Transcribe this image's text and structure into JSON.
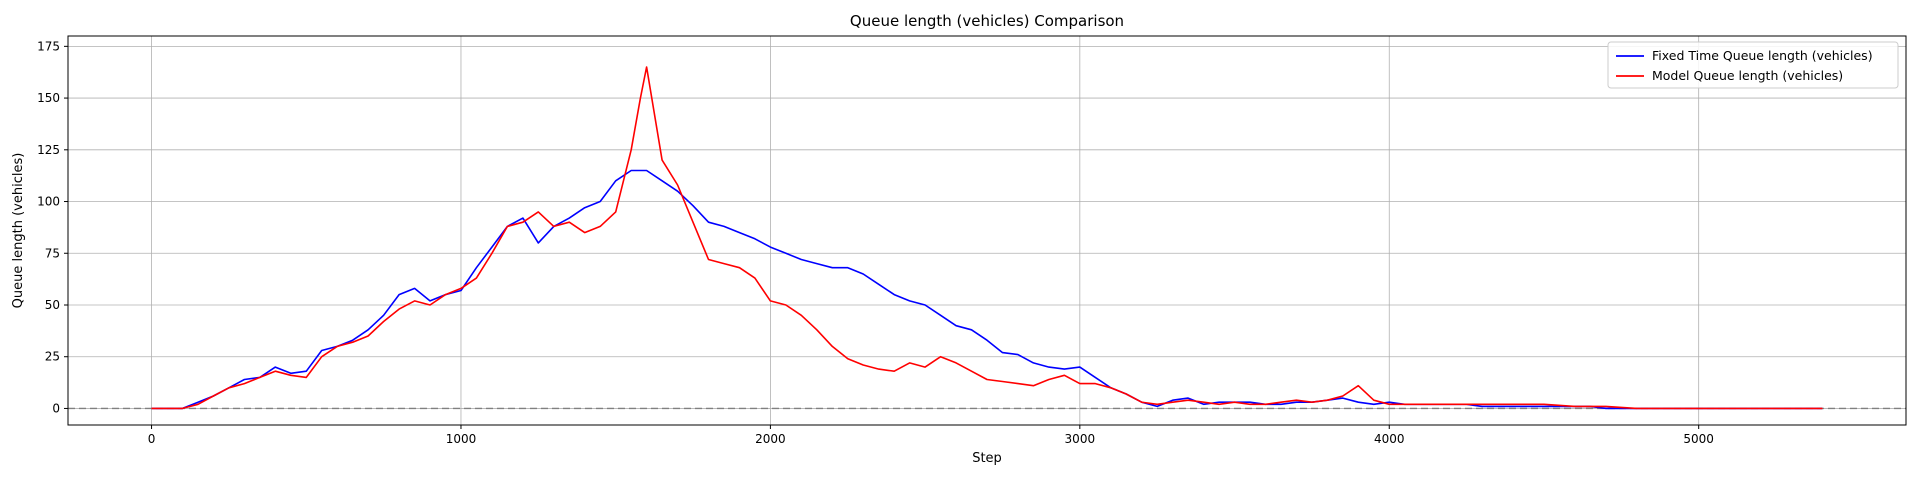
{
  "chart_data": {
    "type": "line",
    "title": "Queue length (vehicles) Comparison",
    "xlabel": "Step",
    "ylabel": "Queue length (vehicles)",
    "xlim": [
      -270,
      5670
    ],
    "ylim": [
      -8,
      180
    ],
    "xticks": [
      0,
      1000,
      2000,
      3000,
      4000,
      5000
    ],
    "yticks": [
      0,
      25,
      50,
      75,
      100,
      125,
      150,
      175
    ],
    "grid": true,
    "legend": "top-right",
    "reference_line": {
      "y": 0,
      "style": "dashed",
      "color": "#808080"
    },
    "series": [
      {
        "name": "Fixed Time Queue length (vehicles)",
        "color": "#0000ff",
        "x": [
          0,
          100,
          150,
          200,
          250,
          300,
          350,
          400,
          450,
          500,
          550,
          600,
          650,
          700,
          750,
          800,
          850,
          900,
          950,
          1000,
          1050,
          1100,
          1150,
          1200,
          1250,
          1300,
          1350,
          1400,
          1450,
          1500,
          1550,
          1600,
          1650,
          1700,
          1750,
          1800,
          1850,
          1900,
          1950,
          2000,
          2050,
          2100,
          2150,
          2200,
          2250,
          2300,
          2350,
          2400,
          2450,
          2500,
          2550,
          2600,
          2650,
          2700,
          2750,
          2800,
          2850,
          2900,
          2950,
          3000,
          3050,
          3100,
          3150,
          3200,
          3250,
          3300,
          3350,
          3400,
          3450,
          3500,
          3550,
          3600,
          3650,
          3700,
          3750,
          3800,
          3850,
          3900,
          3950,
          4000,
          4050,
          4100,
          4150,
          4200,
          4250,
          4300,
          4400,
          4500,
          4600,
          4650,
          4700,
          4800,
          5000,
          5200,
          5400
        ],
        "y": [
          0,
          0,
          3,
          6,
          10,
          14,
          15,
          20,
          17,
          18,
          28,
          30,
          33,
          38,
          45,
          55,
          58,
          52,
          55,
          57,
          68,
          78,
          88,
          92,
          80,
          88,
          92,
          97,
          100,
          110,
          115,
          115,
          110,
          105,
          98,
          90,
          88,
          85,
          82,
          78,
          75,
          72,
          70,
          68,
          68,
          65,
          60,
          55,
          52,
          50,
          45,
          40,
          38,
          33,
          27,
          26,
          22,
          20,
          19,
          20,
          15,
          10,
          7,
          3,
          1,
          4,
          5,
          2,
          3,
          3,
          3,
          2,
          2,
          3,
          3,
          4,
          5,
          3,
          2,
          3,
          2,
          2,
          2,
          2,
          2,
          1,
          1,
          1,
          1,
          1,
          0,
          0,
          0,
          0,
          0
        ]
      },
      {
        "name": "Model Queue length (vehicles)",
        "color": "#ff0000",
        "x": [
          0,
          100,
          150,
          200,
          250,
          300,
          350,
          400,
          450,
          500,
          550,
          600,
          650,
          700,
          750,
          800,
          850,
          900,
          950,
          1000,
          1050,
          1100,
          1150,
          1200,
          1250,
          1300,
          1350,
          1400,
          1450,
          1500,
          1550,
          1580,
          1600,
          1650,
          1700,
          1750,
          1800,
          1850,
          1900,
          1950,
          2000,
          2050,
          2100,
          2150,
          2200,
          2250,
          2300,
          2350,
          2400,
          2450,
          2500,
          2550,
          2600,
          2650,
          2700,
          2750,
          2800,
          2850,
          2900,
          2950,
          3000,
          3050,
          3100,
          3150,
          3200,
          3250,
          3300,
          3350,
          3400,
          3450,
          3500,
          3550,
          3600,
          3650,
          3700,
          3750,
          3800,
          3850,
          3900,
          3950,
          4000,
          4050,
          4100,
          4150,
          4200,
          4250,
          4300,
          4400,
          4500,
          4600,
          4700,
          4800,
          5000,
          5200,
          5400
        ],
        "y": [
          0,
          0,
          2,
          6,
          10,
          12,
          15,
          18,
          16,
          15,
          25,
          30,
          32,
          35,
          42,
          48,
          52,
          50,
          55,
          58,
          63,
          75,
          88,
          90,
          95,
          88,
          90,
          85,
          88,
          95,
          125,
          150,
          165,
          120,
          108,
          90,
          72,
          70,
          68,
          63,
          52,
          50,
          45,
          38,
          30,
          24,
          21,
          19,
          18,
          22,
          20,
          25,
          22,
          18,
          14,
          13,
          12,
          11,
          14,
          16,
          12,
          12,
          10,
          7,
          3,
          2,
          3,
          4,
          3,
          2,
          3,
          2,
          2,
          3,
          4,
          3,
          4,
          6,
          11,
          4,
          2,
          2,
          2,
          2,
          2,
          2,
          2,
          2,
          2,
          1,
          1,
          0,
          0,
          0,
          0
        ]
      }
    ]
  }
}
